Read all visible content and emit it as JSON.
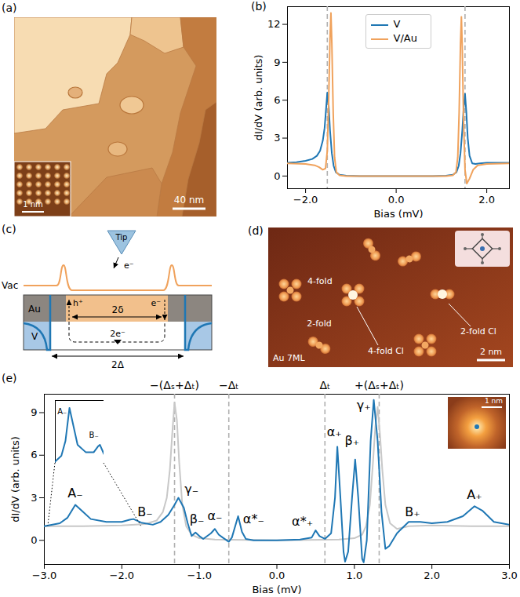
{
  "chart_data": [
    {
      "panel": "(b)",
      "type": "line",
      "x_label": "Bias (mV)",
      "y_label": "dI/dV (arb. units)",
      "xlim": [
        -2.4,
        2.5
      ],
      "ylim": [
        -1,
        13.4
      ],
      "xticks": [
        -2,
        0,
        2
      ],
      "yticks": [
        0,
        3,
        6,
        9,
        12
      ],
      "legend": "top",
      "vlines": {
        "x": [
          -1.52,
          1.52
        ],
        "color": "#b0b0b0",
        "line_style": "dashed"
      },
      "series": [
        {
          "name": "V",
          "color": "#1f77b4",
          "x": [
            -2.4,
            -2.2,
            -2.0,
            -1.85,
            -1.75,
            -1.68,
            -1.62,
            -1.58,
            -1.55,
            -1.52,
            -1.49,
            -1.46,
            -1.42,
            -1.38,
            -1.33,
            -1.25,
            -1.1,
            -0.8,
            0,
            0.8,
            1.1,
            1.25,
            1.33,
            1.38,
            1.42,
            1.46,
            1.49,
            1.52,
            1.55,
            1.58,
            1.62,
            1.68,
            1.75,
            1.85,
            2.0,
            2.2,
            2.5
          ],
          "values": [
            1.05,
            1.1,
            1.2,
            1.35,
            1.6,
            2.0,
            2.8,
            3.8,
            5.2,
            6.6,
            5.6,
            3.6,
            1.8,
            0.8,
            0.3,
            0.1,
            0.02,
            0,
            0,
            0,
            0.02,
            0.1,
            0.3,
            0.8,
            1.8,
            3.6,
            5.4,
            6.5,
            5.0,
            3.0,
            1.6,
            1.0,
            0.95,
            1.0,
            1.05,
            1.05,
            1.05
          ]
        },
        {
          "name": "V/Au",
          "color": "#f0a25c",
          "x": [
            -2.4,
            -2.0,
            -1.8,
            -1.7,
            -1.62,
            -1.56,
            -1.52,
            -1.49,
            -1.46,
            -1.44,
            -1.42,
            -1.39,
            -1.36,
            -1.32,
            -1.25,
            -1.1,
            0,
            1.1,
            1.25,
            1.32,
            1.36,
            1.39,
            1.42,
            1.44,
            1.46,
            1.49,
            1.52,
            1.56,
            1.62,
            1.7,
            1.8,
            2.0,
            2.5
          ],
          "values": [
            1.0,
            0.95,
            0.85,
            0.7,
            0.5,
            0.6,
            2.0,
            6.0,
            11.0,
            12.9,
            10.5,
            5.0,
            1.5,
            0.3,
            0.05,
            0,
            0,
            0,
            0.05,
            0.3,
            1.5,
            5.0,
            10.5,
            12.6,
            10.0,
            4.0,
            0.5,
            -0.6,
            -0.2,
            0.5,
            0.85,
            0.95,
            1.0
          ]
        }
      ]
    },
    {
      "panel": "(e)",
      "type": "line",
      "x_label": "Bias (mV)",
      "y_label": "dI/dV (arb. units)",
      "xlim": [
        -3,
        3
      ],
      "ylim": [
        -1.7,
        10.3
      ],
      "xticks": [
        -3,
        -2,
        -1,
        0,
        1,
        2,
        3
      ],
      "yticks": [
        0,
        3,
        6,
        9
      ],
      "vlines": {
        "x": [
          -1.32,
          -0.62,
          0.62,
          1.32
        ],
        "labels": [
          "−(Δₛ+Δₜ)",
          "−Δₜ",
          "Δₜ",
          "+(Δₛ+Δₜ)"
        ],
        "color": "#b0b0b0",
        "line_style": "dashed"
      },
      "annotations": [
        {
          "text": "A₋",
          "x": -2.6,
          "y": 3.3
        },
        {
          "text": "B₋",
          "x": -1.7,
          "y": 2.0
        },
        {
          "text": "γ₋",
          "x": -1.1,
          "y": 3.6
        },
        {
          "text": "β₋",
          "x": -1.03,
          "y": 1.5
        },
        {
          "text": "α₋",
          "x": -0.8,
          "y": 1.7
        },
        {
          "text": "α*₋",
          "x": -0.3,
          "y": 1.5
        },
        {
          "text": "α*₊",
          "x": 0.33,
          "y": 1.3
        },
        {
          "text": "α₊",
          "x": 0.74,
          "y": 7.6
        },
        {
          "text": "β₊",
          "x": 0.97,
          "y": 7.0
        },
        {
          "text": "γ₊",
          "x": 1.12,
          "y": 9.5
        },
        {
          "text": "B₊",
          "x": 1.75,
          "y": 2.0
        },
        {
          "text": "A₊",
          "x": 2.55,
          "y": 3.2
        }
      ],
      "series": [
        {
          "color": "#c8c8c8",
          "x": [
            -3,
            -2.5,
            -2,
            -1.7,
            -1.55,
            -1.47,
            -1.42,
            -1.38,
            -1.35,
            -1.32,
            -1.29,
            -1.26,
            -1.22,
            -1.17,
            -1.1,
            -1.0,
            -0.8,
            0,
            0.8,
            1.0,
            1.1,
            1.15,
            1.2,
            1.24,
            1.27,
            1.3,
            1.33,
            1.36,
            1.4,
            1.46,
            1.55,
            1.7,
            2,
            2.5,
            3
          ],
          "values": [
            1.0,
            1.0,
            1.05,
            1.15,
            1.4,
            2.0,
            3.0,
            5.0,
            7.5,
            9.7,
            8.5,
            5.5,
            2.5,
            1.0,
            0.4,
            0.15,
            0.05,
            0,
            0.05,
            0.15,
            0.4,
            1.0,
            2.5,
            5.5,
            8.0,
            9.4,
            7.5,
            5.0,
            2.5,
            1.2,
            0.8,
            1.0,
            1.05,
            1.0,
            1.0
          ]
        },
        {
          "color": "#1f77b4",
          "x": [
            -3.0,
            -2.8,
            -2.7,
            -2.6,
            -2.5,
            -2.4,
            -2.2,
            -2.0,
            -1.9,
            -1.85,
            -1.75,
            -1.6,
            -1.5,
            -1.4,
            -1.32,
            -1.27,
            -1.2,
            -1.15,
            -1.1,
            -1.05,
            -1.0,
            -0.95,
            -0.85,
            -0.8,
            -0.75,
            -0.7,
            -0.62,
            -0.58,
            -0.5,
            -0.45,
            -0.4,
            -0.3,
            0,
            0.3,
            0.45,
            0.5,
            0.55,
            0.62,
            0.7,
            0.75,
            0.78,
            0.82,
            0.86,
            0.88,
            0.92,
            0.97,
            1.01,
            1.05,
            1.1,
            1.12,
            1.16,
            1.21,
            1.25,
            1.3,
            1.35,
            1.4,
            1.45,
            1.55,
            1.7,
            1.85,
            2.0,
            2.2,
            2.4,
            2.55,
            2.65,
            2.8,
            3.0
          ],
          "values": [
            1.0,
            1.2,
            1.6,
            2.5,
            2.0,
            1.5,
            1.3,
            1.3,
            1.45,
            1.5,
            1.25,
            1.1,
            1.3,
            1.8,
            2.5,
            3.0,
            2.3,
            1.2,
            0.3,
            0.55,
            0.3,
            0.1,
            0.5,
            0.8,
            0.4,
            0.2,
            -0.1,
            0.2,
            1.7,
            0.6,
            0.1,
            0.0,
            0.0,
            0.05,
            0.2,
            0.7,
            0.3,
            0.1,
            0.5,
            3.0,
            6.6,
            3.0,
            -0.8,
            -1.5,
            -0.8,
            3.0,
            5.7,
            3.0,
            -1.3,
            -1.55,
            0.0,
            7.0,
            9.9,
            7.0,
            2.0,
            -0.6,
            -0.4,
            0.5,
            1.3,
            1.3,
            1.2,
            1.3,
            1.7,
            2.4,
            2.1,
            1.3,
            1.1
          ]
        }
      ],
      "inset": {
        "xlim": [
          -2.95,
          -1.75
        ],
        "ylim": [
          1.0,
          2.7
        ],
        "tick_labels": false,
        "annotations": [
          {
            "text": "A₋",
            "x": -2.78,
            "y": 2.4
          },
          {
            "text": "B₋",
            "x": -2.0,
            "y": 1.75
          }
        ]
      },
      "image_inset": {
        "scale_bar": "1 nm"
      }
    }
  ],
  "images": [
    {
      "panel": "(a)",
      "scale_bar": "40 nm",
      "inset_scale_bar": "1 nm"
    },
    {
      "panel": "(d)",
      "labels": {
        "four_fold": "4-fold",
        "two_fold": "2-fold",
        "four_fold_cl": "4-fold Cl",
        "two_fold_cl": "2-fold Cl"
      },
      "substrate": "Au 7ML",
      "scale_bar": "2 nm"
    }
  ],
  "diagram": {
    "panel": "(c)",
    "labels": {
      "tip": "Tip",
      "tip_electron": "e⁻",
      "vacuum": "Vac",
      "gold": "Au",
      "vanadium": "V",
      "hole": "h⁺",
      "electron": "e⁻",
      "small_gap": "2δ",
      "pair": "2e⁻",
      "large_gap": "2Δ"
    }
  }
}
